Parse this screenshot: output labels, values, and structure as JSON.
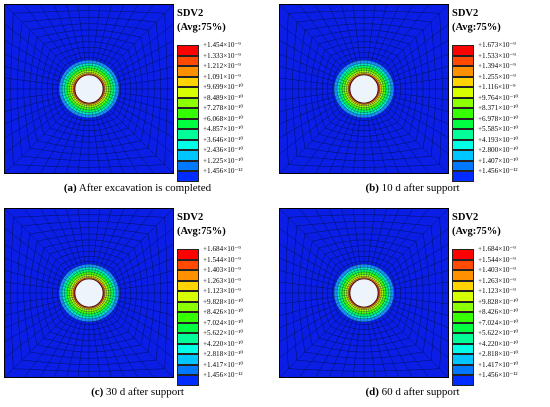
{
  "legend_colors": [
    "#ff0000",
    "#ff4a00",
    "#ff9000",
    "#ffd400",
    "#d8ff00",
    "#8cff00",
    "#36ff00",
    "#00ff40",
    "#00ff99",
    "#00ffe6",
    "#00c6ff",
    "#0078ff",
    "#002cff"
  ],
  "panels": [
    {
      "title": "SDV2",
      "subtitle": "(Avg:75%)",
      "caption_letter": "(a)",
      "caption_text": " After excavation is completed",
      "labels": [
        "+1.454×10⁻⁹",
        "+1.333×10⁻⁹",
        "+1.212×10⁻⁹",
        "+1.091×10⁻⁹",
        "+9.699×10⁻¹⁰",
        "+8.489×10⁻¹⁰",
        "+7.278×10⁻¹⁰",
        "+6.068×10⁻¹⁰",
        "+4.857×10⁻¹⁰",
        "+3.646×10⁻¹⁰",
        "+2.436×10⁻¹⁰",
        "+1.225×10⁻¹⁰",
        "+1.456×10⁻¹²"
      ]
    },
    {
      "title": "SDV2",
      "subtitle": "(Avg:75%)",
      "caption_letter": "(b)",
      "caption_text": " 10 d after support",
      "labels": [
        "+1.673×10⁻⁹",
        "+1.533×10⁻⁹",
        "+1.394×10⁻⁹",
        "+1.255×10⁻⁹",
        "+1.116×10⁻⁹",
        "+9.764×10⁻¹⁰",
        "+8.371×10⁻¹⁰",
        "+6.978×10⁻¹⁰",
        "+5.585×10⁻¹⁰",
        "+4.193×10⁻¹⁰",
        "+2.800×10⁻¹⁰",
        "+1.407×10⁻¹⁰",
        "+1.456×10⁻¹²"
      ]
    },
    {
      "title": "SDV2",
      "subtitle": "(Avg:75%)",
      "caption_letter": "(c)",
      "caption_text": " 30 d after support",
      "labels": [
        "+1.684×10⁻⁹",
        "+1.544×10⁻⁹",
        "+1.403×10⁻⁹",
        "+1.263×10⁻⁹",
        "+1.123×10⁻⁹",
        "+9.828×10⁻¹⁰",
        "+8.426×10⁻¹⁰",
        "+7.024×10⁻¹⁰",
        "+5.622×10⁻¹⁰",
        "+4.220×10⁻¹⁰",
        "+2.818×10⁻¹⁰",
        "+1.417×10⁻¹⁰",
        "+1.456×10⁻¹²"
      ]
    },
    {
      "title": "SDV2",
      "subtitle": "(Avg:75%)",
      "caption_letter": "(d)",
      "caption_text": " 60 d after support",
      "labels": [
        "+1.684×10⁻⁹",
        "+1.544×10⁻⁹",
        "+1.403×10⁻⁹",
        "+1.263×10⁻⁹",
        "+1.123×10⁻⁹",
        "+9.828×10⁻¹⁰",
        "+8.426×10⁻¹⁰",
        "+7.024×10⁻¹⁰",
        "+5.622×10⁻¹⁰",
        "+4.220×10⁻¹⁰",
        "+2.818×10⁻¹⁰",
        "+1.417×10⁻¹⁰",
        "+1.456×10⁻¹²"
      ]
    }
  ]
}
